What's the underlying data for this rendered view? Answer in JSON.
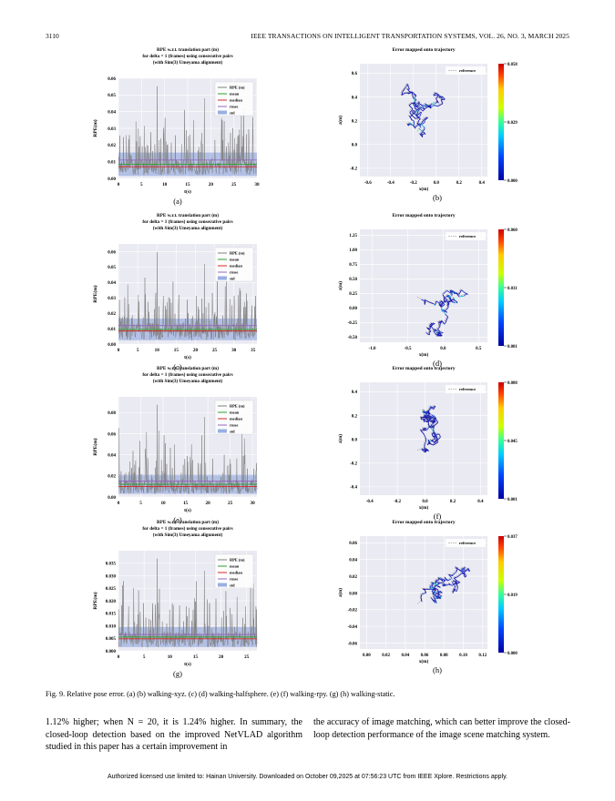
{
  "header": {
    "page_number": "3110",
    "journal": "IEEE TRANSACTIONS ON INTELLIGENT TRANSPORTATION SYSTEMS, VOL. 26, NO. 3, MARCH 2025"
  },
  "figure": {
    "caption": "Fig. 9.   Relative pose error. (a) (b) walking-xyz. (c) (d) walking-halfsphere. (e) (f) walking-rpy. (g) (h) walking-static.",
    "rpe_title": [
      "RPE w.r.t. translation part (m)",
      "for delta = 1 (frames) using consecutive pairs",
      "(with Sim(3) Umeyama alignment)"
    ],
    "traj_title": "Error mapped onto trajectory",
    "rpe_legend": [
      "RPE (m)",
      "mean",
      "median",
      "rmse",
      "std"
    ],
    "traj_legend": "reference",
    "rpe_xlabel": "t(s)",
    "rpe_ylabel": "RPE(m)",
    "traj_xlabel": "x(m)",
    "traj_ylabel": "z(m)",
    "colors": {
      "rpe": "#808080",
      "mean": "#2ca02c",
      "median": "#d62728",
      "rmse": "#9467bd",
      "std": "#6e8fd6"
    },
    "panels": [
      {
        "label": "(a)",
        "kind": "rpe",
        "xticks": [
          "0",
          "5",
          "10",
          "15",
          "20",
          "25",
          "30"
        ],
        "xmax": 30,
        "yticks": [
          "0.00",
          "0.01",
          "0.02",
          "0.03",
          "0.04",
          "0.05",
          "0.06"
        ],
        "ymax": 0.06,
        "mean": 0.0085,
        "median": 0.007,
        "rmse": 0.011,
        "std": 0.007
      },
      {
        "label": "(b)",
        "kind": "traj",
        "xticks": [
          "-0.6",
          "-0.4",
          "-0.2",
          "0.0",
          "0.2",
          "0.4"
        ],
        "yticks": [
          "-0.2",
          "0.0",
          "0.2",
          "0.4",
          "0.6"
        ],
        "cbar": [
          "0.058",
          "0.029",
          "0.000"
        ]
      },
      {
        "label": "(c)",
        "kind": "rpe",
        "xticks": [
          "0",
          "5",
          "10",
          "15",
          "20",
          "25",
          "30",
          "35"
        ],
        "xmax": 36,
        "yticks": [
          "0.00",
          "0.01",
          "0.02",
          "0.03",
          "0.04",
          "0.05",
          "0.06"
        ],
        "ymax": 0.065,
        "mean": 0.0095,
        "median": 0.0085,
        "rmse": 0.012,
        "std": 0.007
      },
      {
        "label": "(d)",
        "kind": "traj",
        "xticks": [
          "-1.0",
          "-0.5",
          "0.0",
          "0.5"
        ],
        "yticks": [
          "-0.50",
          "-0.25",
          "0.00",
          "0.25",
          "0.50",
          "0.75",
          "1.00",
          "1.25"
        ],
        "cbar": [
          "0.060",
          "0.031",
          "0.001"
        ]
      },
      {
        "label": "(e)",
        "kind": "rpe",
        "xticks": [
          "0",
          "5",
          "10",
          "15",
          "20",
          "25",
          "30"
        ],
        "xmax": 31,
        "yticks": [
          "0.00",
          "0.02",
          "0.04",
          "0.06",
          "0.08"
        ],
        "ymax": 0.095,
        "mean": 0.012,
        "median": 0.01,
        "rmse": 0.015,
        "std": 0.009
      },
      {
        "label": "(f)",
        "kind": "traj",
        "xticks": [
          "-0.4",
          "-0.2",
          "0.0",
          "0.2",
          "0.4"
        ],
        "yticks": [
          "-0.4",
          "-0.2",
          "0.0",
          "0.2",
          "0.4"
        ],
        "cbar": [
          "0.088",
          "0.045",
          "0.001"
        ]
      },
      {
        "label": "(g)",
        "kind": "rpe",
        "xticks": [
          "0",
          "5",
          "10",
          "15",
          "20",
          "25"
        ],
        "xmax": 27,
        "yticks": [
          "0.000",
          "0.005",
          "0.010",
          "0.015",
          "0.020",
          "0.025",
          "0.030",
          "0.035"
        ],
        "ymax": 0.04,
        "mean": 0.0055,
        "median": 0.0048,
        "rmse": 0.0065,
        "std": 0.004
      },
      {
        "label": "(h)",
        "kind": "traj",
        "xticks": [
          "0.00",
          "0.02",
          "0.04",
          "0.06",
          "0.08",
          "0.10",
          "0.12"
        ],
        "yticks": [
          "-0.06",
          "-0.04",
          "-0.02",
          "0.00",
          "0.02",
          "0.04",
          "0.06"
        ],
        "cbar": [
          "0.037",
          "0.019",
          "0.000"
        ]
      }
    ]
  },
  "body": {
    "left": "1.12% higher; when N = 20, it is 1.24% higher. In summary, the closed-loop detection based on the improved NetVLAD algorithm studied in this paper has a certain improvement in",
    "right": "the accuracy of image matching, which can better improve the closed-loop detection performance of the image scene matching system."
  },
  "footer": "Authorized licensed use limited to: Hainan University. Downloaded on October 09,2025 at 07:56:23 UTC from IEEE Xplore.  Restrictions apply."
}
